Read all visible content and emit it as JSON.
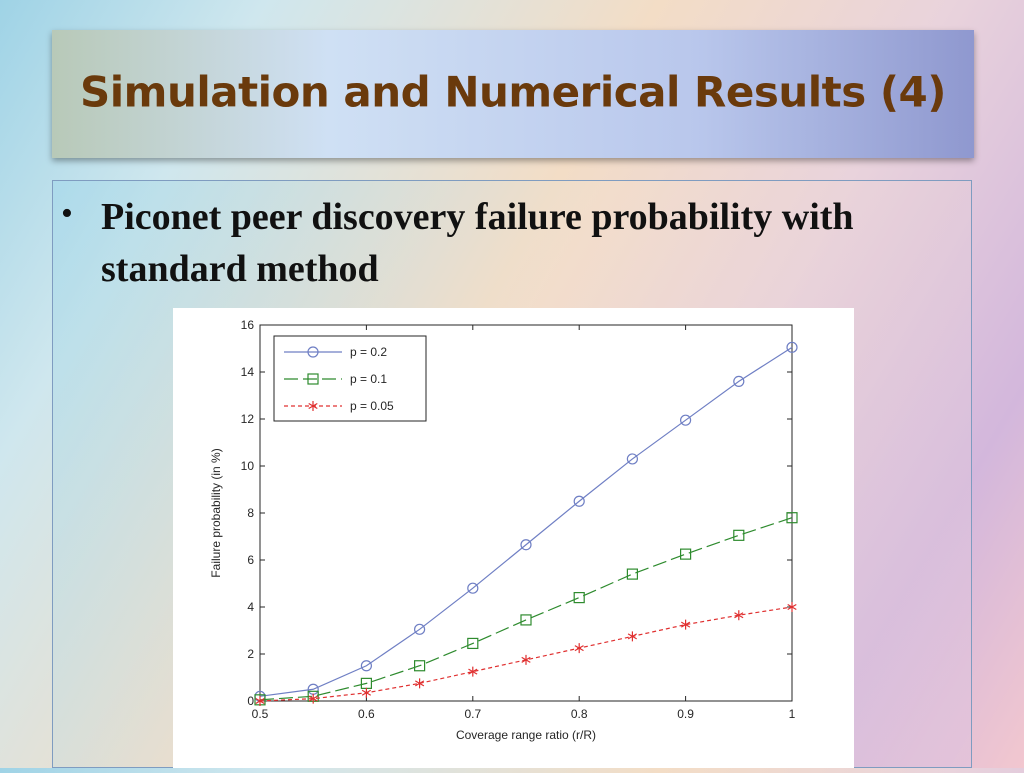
{
  "slide": {
    "title": "Simulation and Numerical Results (4)",
    "bullet": "Piconet peer discovery failure probability with standard method"
  },
  "chart_data": {
    "type": "line",
    "title": "",
    "xlabel": "Coverage range ratio (r/R)",
    "ylabel": "Failure probability (in %)",
    "xlim": [
      0.5,
      1
    ],
    "ylim": [
      0,
      16
    ],
    "x_ticks": [
      "0.5",
      "0.6",
      "0.7",
      "0.8",
      "0.9",
      "1"
    ],
    "y_ticks": [
      "0",
      "2",
      "4",
      "6",
      "8",
      "10",
      "12",
      "14",
      "16"
    ],
    "legend_position": "top-left",
    "grid": false,
    "x": [
      0.5,
      0.55,
      0.6,
      0.65,
      0.7,
      0.75,
      0.8,
      0.85,
      0.9,
      0.95,
      1.0
    ],
    "series": [
      {
        "name": "p = 0.2",
        "color": "#6f7fc4",
        "marker": "circle",
        "dash": "solid",
        "values": [
          0.2,
          0.5,
          1.5,
          3.05,
          4.8,
          6.65,
          8.5,
          10.3,
          11.95,
          13.6,
          15.05
        ]
      },
      {
        "name": "p = 0.1",
        "color": "#2e8b2e",
        "marker": "square",
        "dash": "long-dash",
        "values": [
          0.05,
          0.2,
          0.75,
          1.5,
          2.45,
          3.45,
          4.4,
          5.4,
          6.25,
          7.05,
          7.8
        ]
      },
      {
        "name": "p = 0.05",
        "color": "#e03030",
        "marker": "star",
        "dash": "short-dash",
        "values": [
          0.0,
          0.1,
          0.35,
          0.75,
          1.25,
          1.75,
          2.25,
          2.75,
          3.25,
          3.65,
          4.0
        ]
      }
    ]
  }
}
